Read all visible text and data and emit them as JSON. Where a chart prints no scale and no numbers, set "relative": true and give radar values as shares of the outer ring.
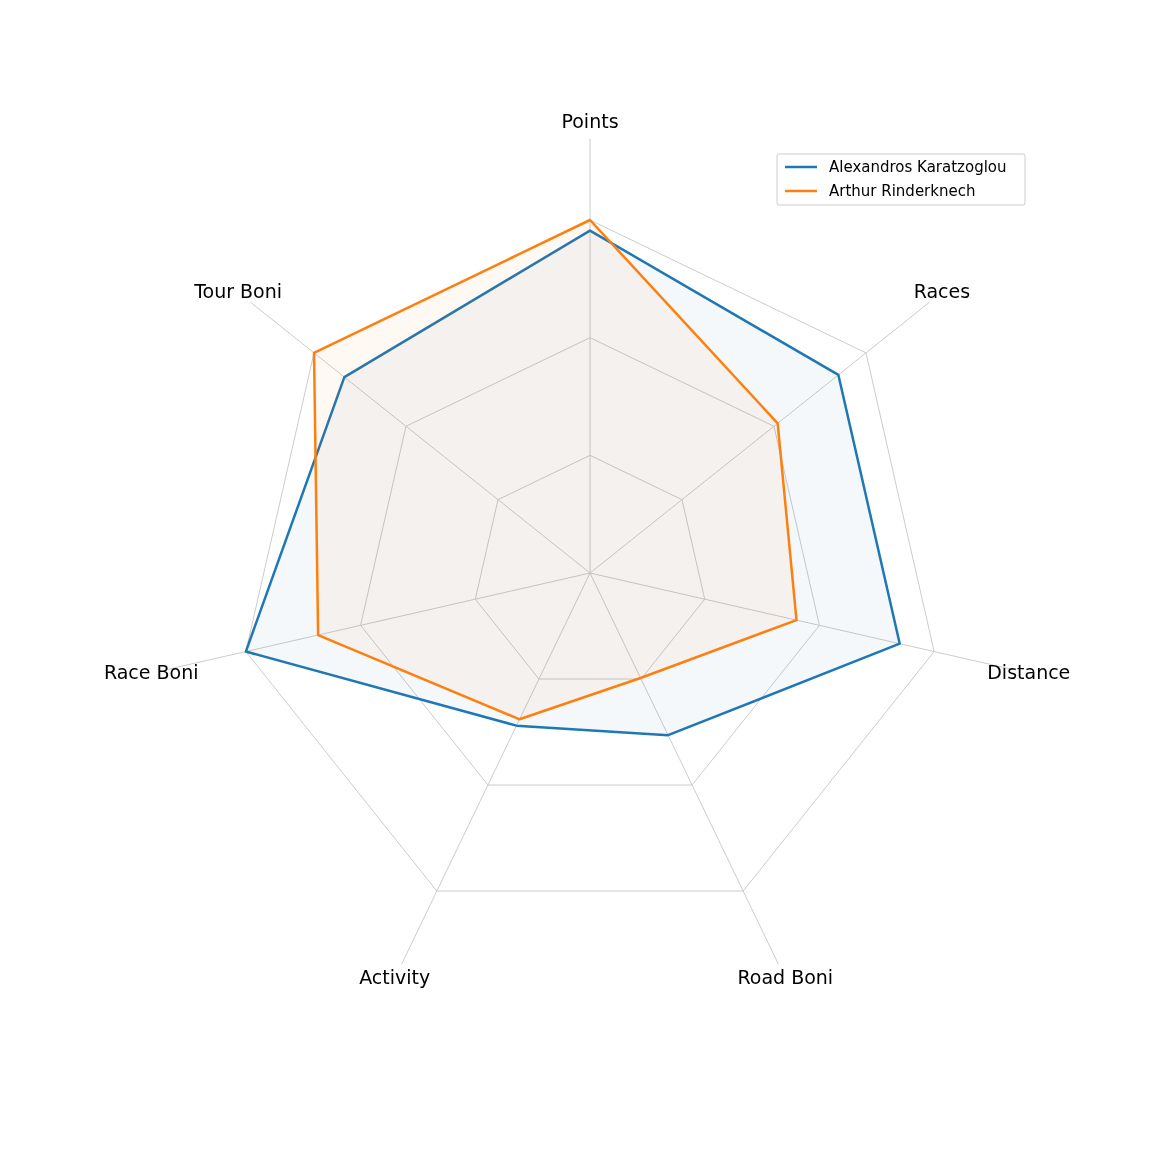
{
  "chart_data": {
    "type": "radar",
    "relative": true,
    "grid": true,
    "legend": "top right",
    "categories": [
      "Points",
      "Races",
      "Distance",
      "Road Boni",
      "Activity",
      "Race Boni",
      "Tour Boni"
    ],
    "series": [
      {
        "name": "Alexandros Karatzoglou",
        "color": "#1f77b4",
        "values": [
          0.97,
          0.9,
          0.9,
          0.51,
          0.48,
          1.0,
          0.89
        ]
      },
      {
        "name": "Arthur Rinderknech",
        "color": "#ff7f0e",
        "values": [
          1.0,
          0.68,
          0.6,
          0.33,
          0.46,
          0.79,
          1.0
        ]
      }
    ]
  }
}
